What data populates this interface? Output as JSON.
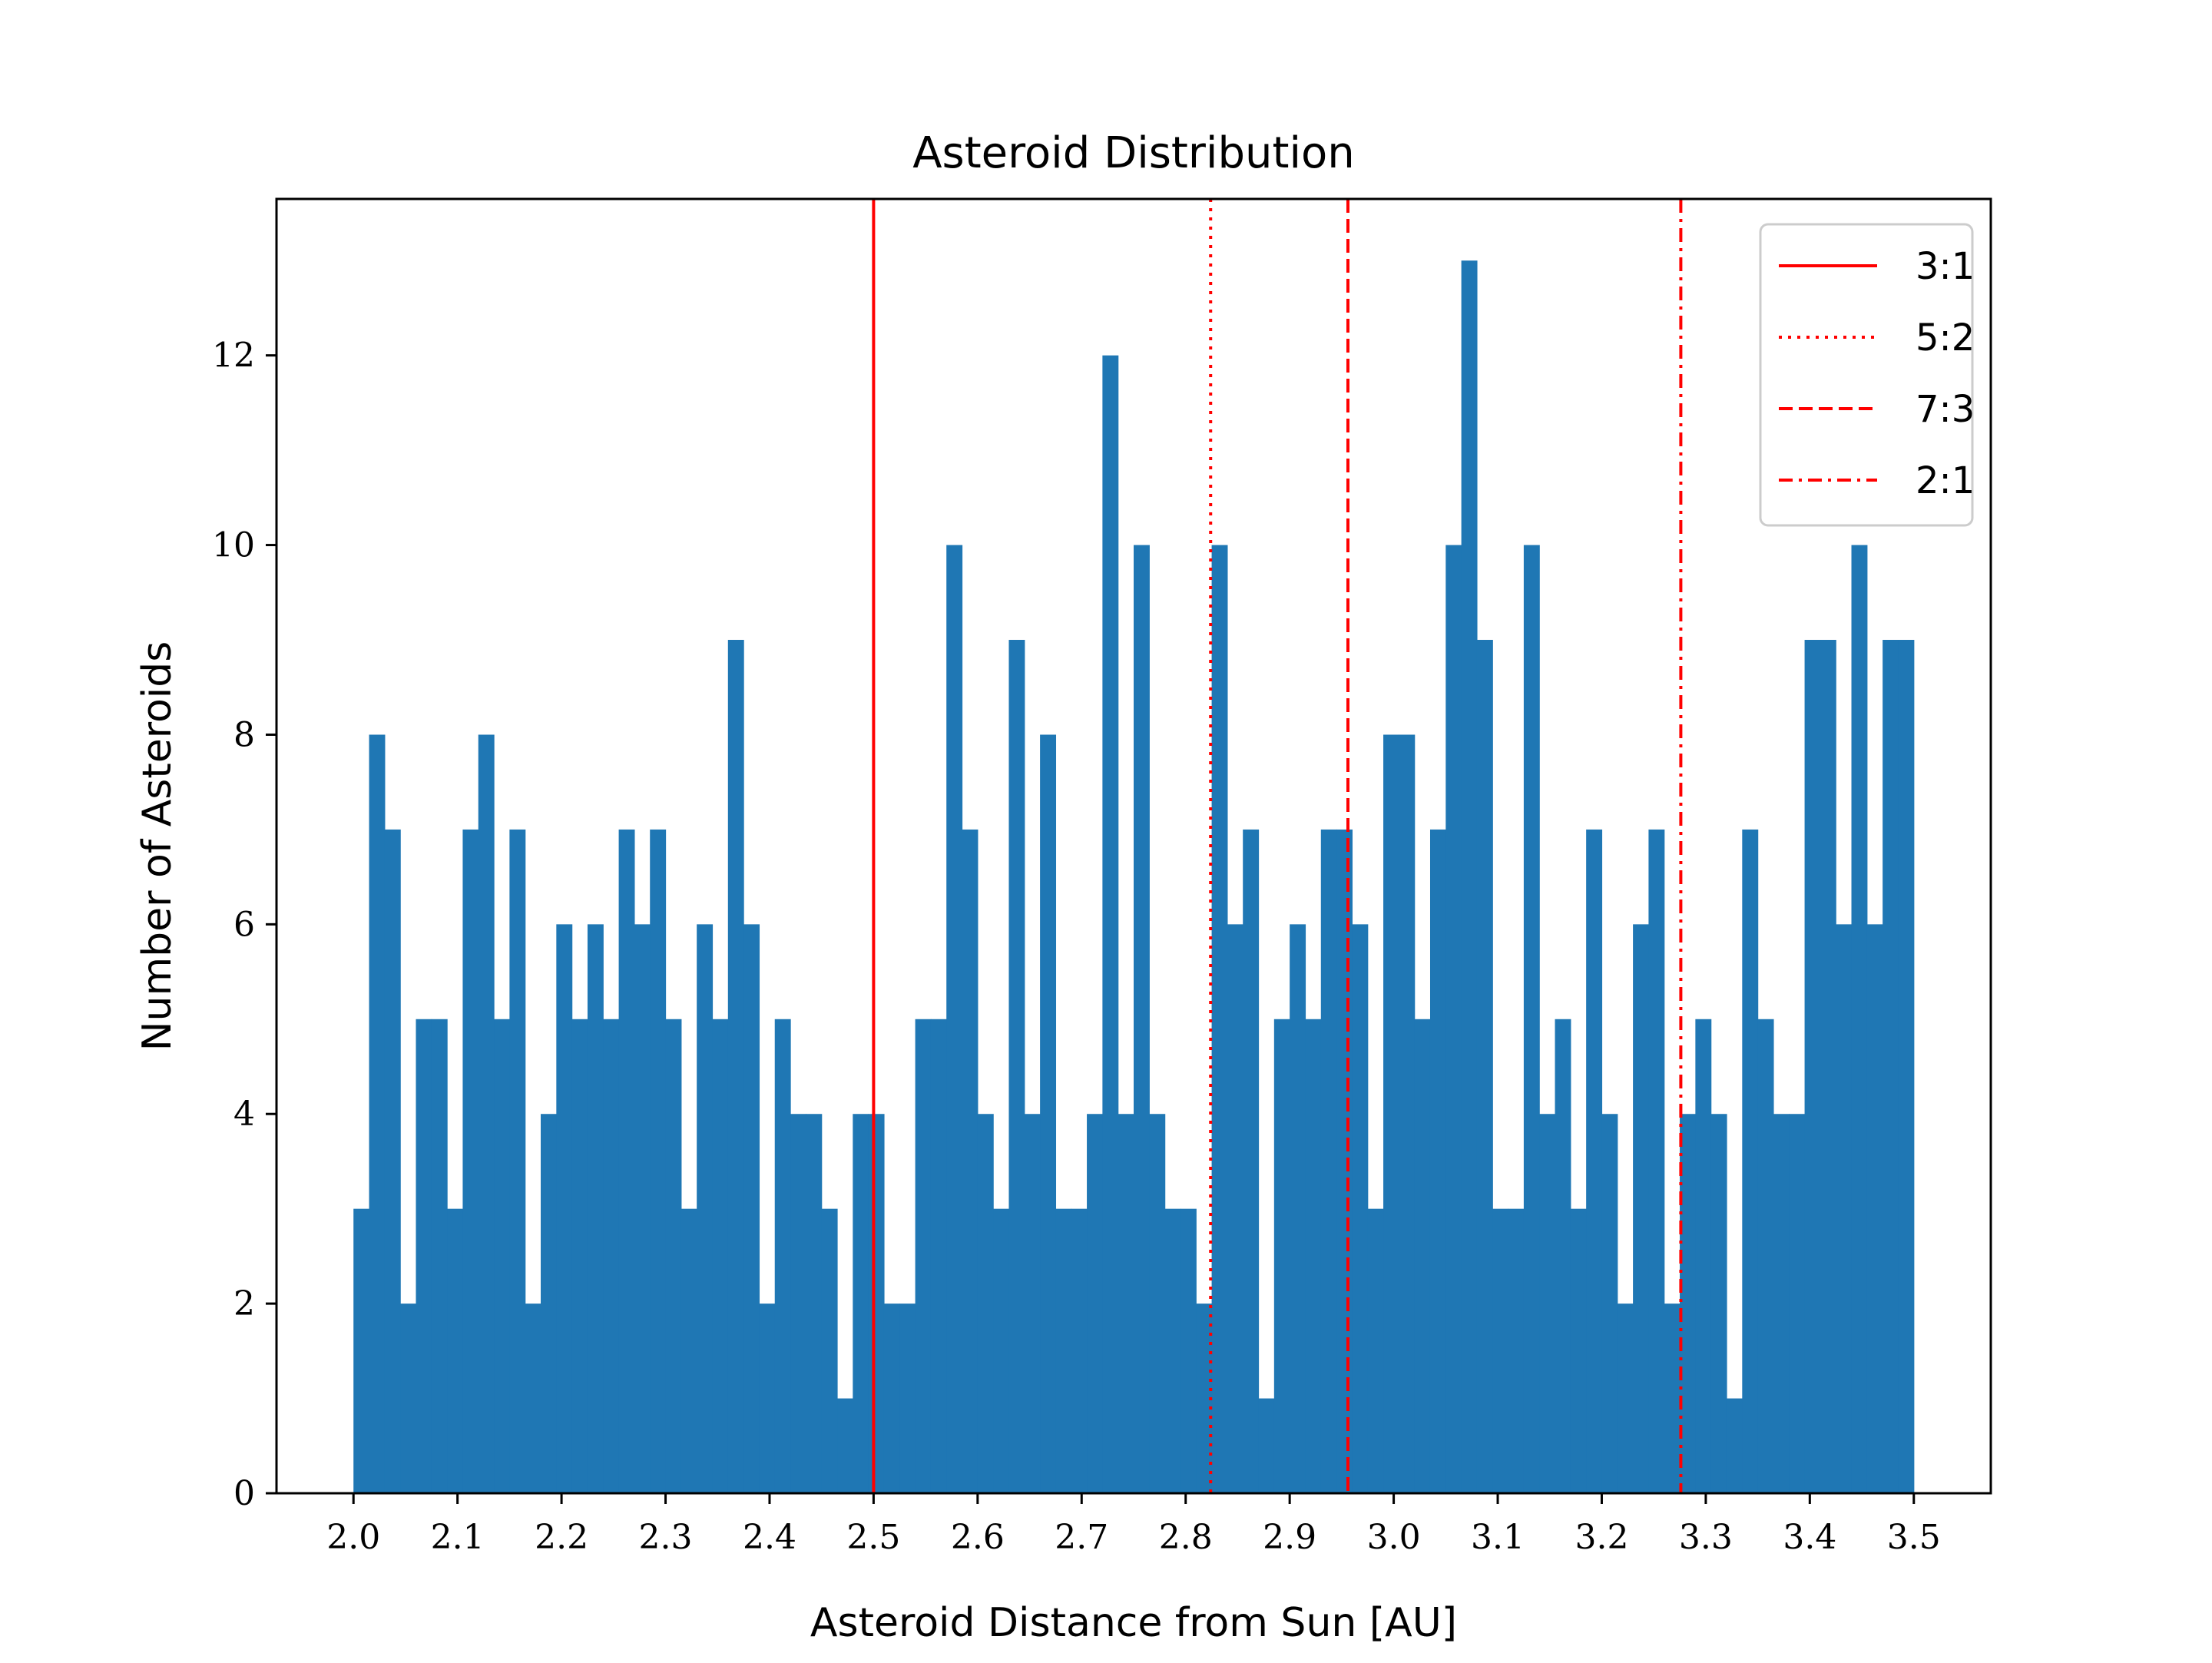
{
  "chart_data": {
    "type": "bar",
    "title": "Asteroid Distribution",
    "xlabel": "Asteroid Distance from Sun [AU]",
    "ylabel": "Number of Asteroids",
    "xlim": [
      1.926,
      3.574
    ],
    "ylim": [
      0,
      13.65
    ],
    "xticks": [
      "2.0",
      "2.1",
      "2.2",
      "2.3",
      "2.4",
      "2.5",
      "2.6",
      "2.7",
      "2.8",
      "2.9",
      "3.0",
      "3.1",
      "3.2",
      "3.3",
      "3.4",
      "3.5"
    ],
    "yticks": [
      "0",
      "2",
      "4",
      "6",
      "8",
      "10",
      "12"
    ],
    "bins": {
      "start": 2.0,
      "end": 3.5,
      "count": 100
    },
    "counts": [
      3,
      8,
      7,
      2,
      5,
      5,
      3,
      7,
      8,
      5,
      7,
      2,
      4,
      6,
      5,
      6,
      5,
      7,
      6,
      7,
      5,
      3,
      6,
      5,
      9,
      6,
      2,
      5,
      4,
      4,
      3,
      1,
      4,
      4,
      2,
      2,
      5,
      5,
      10,
      7,
      4,
      3,
      9,
      4,
      8,
      3,
      3,
      4,
      12,
      4,
      10,
      4,
      3,
      3,
      2,
      10,
      6,
      7,
      1,
      5,
      6,
      5,
      7,
      7,
      6,
      3,
      8,
      8,
      5,
      7,
      10,
      13,
      9,
      3,
      3,
      10,
      4,
      5,
      3,
      7,
      4,
      2,
      6,
      7,
      2,
      4,
      5,
      4,
      1,
      7,
      5,
      4,
      4,
      9,
      9,
      6,
      10,
      6,
      9,
      9
    ],
    "color": "#1f77b4",
    "lines": [
      {
        "name": "3:1",
        "x": 2.5,
        "style": "solid",
        "color": "#ff0000"
      },
      {
        "name": "5:2",
        "x": 2.824,
        "style": "dotted",
        "color": "#ff0000"
      },
      {
        "name": "7:3",
        "x": 2.956,
        "style": "dashed",
        "color": "#ff0000"
      },
      {
        "name": "2:1",
        "x": 3.276,
        "style": "dashdot",
        "color": "#ff0000"
      }
    ],
    "grid": false,
    "legend_position": "top-right"
  }
}
